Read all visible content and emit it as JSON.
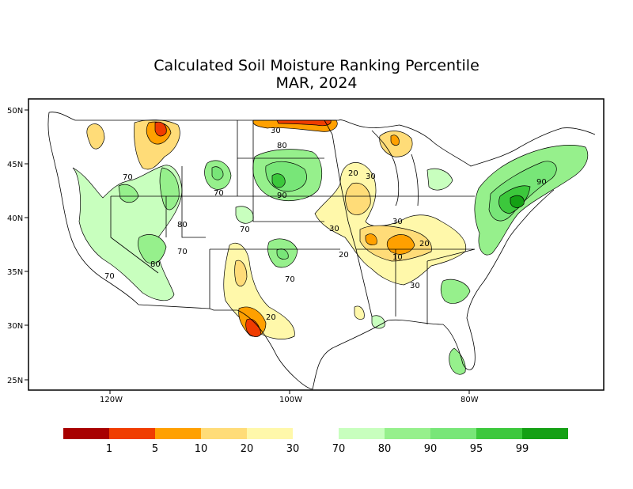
{
  "title": "Calculated Soil Moisture Ranking Percentile",
  "subtitle": "MAR, 2024",
  "y_ticks": [
    "50N",
    "45N",
    "40N",
    "35N",
    "30N",
    "25N"
  ],
  "x_ticks": [
    "120W",
    "100W",
    "80W"
  ],
  "contour_labels": [
    "30",
    "80",
    "20",
    "30",
    "70",
    "90",
    "70",
    "80",
    "70",
    "80",
    "70",
    "70",
    "30",
    "30",
    "20",
    "20",
    "10",
    "20",
    "30",
    "90",
    "70"
  ],
  "legend": {
    "dry": [
      {
        "color": "#a80000"
      },
      {
        "color": "#f03c00"
      },
      {
        "color": "#ffa000"
      },
      {
        "color": "#ffdc78"
      },
      {
        "color": "#fff8aa"
      }
    ],
    "wet": [
      {
        "color": "#c8ffbe"
      },
      {
        "color": "#96f08c"
      },
      {
        "color": "#78e678"
      },
      {
        "color": "#3cc83c"
      },
      {
        "color": "#14a014"
      }
    ],
    "labels": [
      "1",
      "5",
      "10",
      "20",
      "30",
      "70",
      "80",
      "90",
      "95",
      "99"
    ]
  }
}
